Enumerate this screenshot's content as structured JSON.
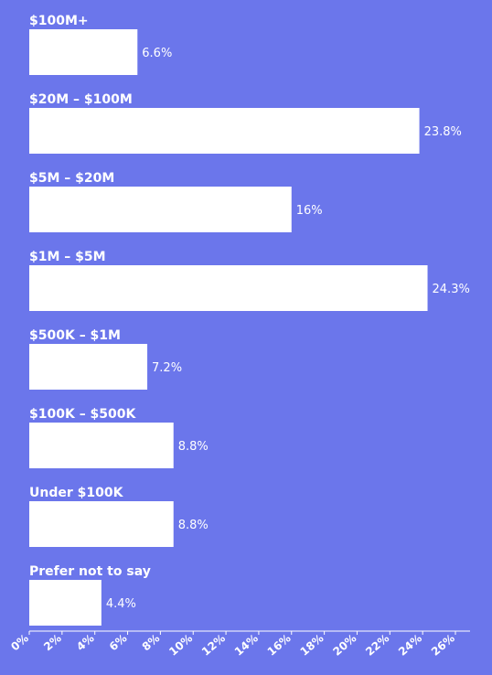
{
  "chart_data": {
    "type": "bar",
    "orientation": "horizontal",
    "categories": [
      "$100M+",
      "$20M – $100M",
      "$5M – $20M",
      "$1M – $5M",
      "$500K – $1M",
      "$100K – $500K",
      "Under $100K",
      "Prefer not to say"
    ],
    "values": [
      6.6,
      23.8,
      16,
      24.3,
      7.2,
      8.8,
      8.8,
      4.4
    ],
    "value_labels": [
      "6.6%",
      "23.8%",
      "16%",
      "24.3%",
      "7.2%",
      "8.8%",
      "8.8%",
      "4.4%"
    ],
    "x_ticks": [
      "0%",
      "2%",
      "4%",
      "6%",
      "8%",
      "10%",
      "12%",
      "14%",
      "16%",
      "18%",
      "20%",
      "22%",
      "24%",
      "26%"
    ],
    "xlim": [
      0,
      26
    ],
    "grid": false,
    "colors": {
      "background": "#6b76eb",
      "bar": "#ffffff",
      "text": "#ffffff"
    }
  }
}
